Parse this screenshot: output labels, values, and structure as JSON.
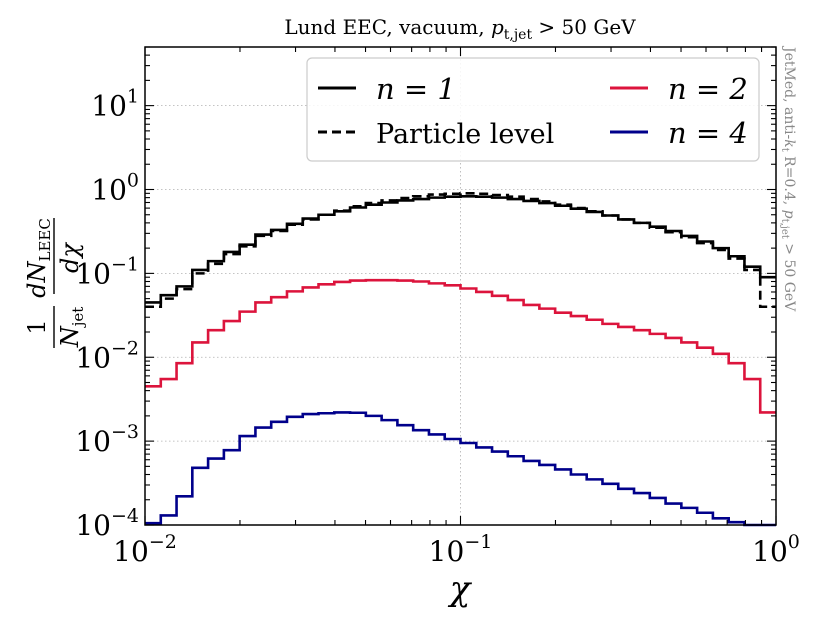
{
  "chart_data": {
    "type": "line",
    "title": "Lund EEC, vacuum, p_t,jet > 50 GeV",
    "title_parts": {
      "pre": "Lund EEC, vacuum, ",
      "p": "p",
      "sub": "t,jet",
      "post": " > 50 GeV"
    },
    "xlabel": "χ",
    "ylabel": "1/N_jet dN_LEEC/dχ",
    "ylabel_parts": {
      "one": "1",
      "N": "N",
      "jet": "jet",
      "dN": "dN",
      "LEEC": "LEEC",
      "dchi": "dχ"
    },
    "xscale": "log",
    "yscale": "log",
    "xlim": [
      0.01,
      1.0
    ],
    "ylim": [
      0.0001,
      50
    ],
    "grid": true,
    "x_ticks": [
      {
        "value": 0.01,
        "base": "10",
        "exp": "−2"
      },
      {
        "value": 0.1,
        "base": "10",
        "exp": "−1"
      },
      {
        "value": 1.0,
        "base": "10",
        "exp": "0"
      }
    ],
    "y_ticks": [
      {
        "value": 0.0001,
        "base": "10",
        "exp": "−4"
      },
      {
        "value": 0.001,
        "base": "10",
        "exp": "−3"
      },
      {
        "value": 0.01,
        "base": "10",
        "exp": "−2"
      },
      {
        "value": 0.1,
        "base": "10",
        "exp": "−1"
      },
      {
        "value": 1,
        "base": "10",
        "exp": "0"
      },
      {
        "value": 10,
        "base": "10",
        "exp": "1"
      }
    ],
    "side_annotation": {
      "pre": "JetMed, anti-",
      "k": "k",
      "ksub": "t",
      "mid": " R=0.4, ",
      "p": "p",
      "psub": "t,jet",
      "post": " > 50 GeV"
    },
    "legend_position": "top-right",
    "bins": {
      "n_bins": 40,
      "xmin": 0.01,
      "xmax": 1.0,
      "spacing": "log"
    },
    "series": [
      {
        "name": "n = 1",
        "math": "n = 1",
        "color": "#000000",
        "dash": "solid",
        "values": [
          0.045,
          0.055,
          0.07,
          0.11,
          0.14,
          0.18,
          0.22,
          0.29,
          0.33,
          0.39,
          0.45,
          0.5,
          0.55,
          0.61,
          0.66,
          0.7,
          0.74,
          0.77,
          0.8,
          0.82,
          0.83,
          0.82,
          0.8,
          0.77,
          0.73,
          0.69,
          0.64,
          0.59,
          0.54,
          0.49,
          0.44,
          0.4,
          0.36,
          0.32,
          0.28,
          0.24,
          0.2,
          0.16,
          0.12,
          0.09
        ]
      },
      {
        "name": "Particle level",
        "math": "",
        "color": "#000000",
        "dash": "dashed",
        "values": [
          0.04,
          0.05,
          0.065,
          0.1,
          0.13,
          0.17,
          0.21,
          0.28,
          0.32,
          0.38,
          0.44,
          0.5,
          0.56,
          0.63,
          0.69,
          0.74,
          0.79,
          0.83,
          0.87,
          0.89,
          0.9,
          0.89,
          0.86,
          0.82,
          0.77,
          0.72,
          0.66,
          0.6,
          0.55,
          0.49,
          0.44,
          0.4,
          0.35,
          0.31,
          0.27,
          0.23,
          0.19,
          0.15,
          0.11,
          0.04
        ]
      },
      {
        "name": "n = 2",
        "math": "n = 2",
        "color": "#dc143c",
        "dash": "solid",
        "values": [
          0.0045,
          0.0055,
          0.0085,
          0.015,
          0.021,
          0.027,
          0.035,
          0.045,
          0.052,
          0.061,
          0.068,
          0.074,
          0.079,
          0.082,
          0.083,
          0.083,
          0.082,
          0.08,
          0.076,
          0.072,
          0.066,
          0.06,
          0.054,
          0.048,
          0.042,
          0.038,
          0.034,
          0.031,
          0.028,
          0.025,
          0.023,
          0.021,
          0.019,
          0.017,
          0.015,
          0.013,
          0.011,
          0.0085,
          0.0055,
          0.0022
        ]
      },
      {
        "name": "n = 4",
        "math": "n = 4",
        "color": "#00008b",
        "dash": "solid",
        "values": [
          0.000105,
          0.00013,
          0.00022,
          0.00048,
          0.00062,
          0.00078,
          0.00115,
          0.00145,
          0.0017,
          0.00195,
          0.0021,
          0.00215,
          0.0022,
          0.00218,
          0.002,
          0.00178,
          0.00155,
          0.00135,
          0.0012,
          0.00106,
          0.00095,
          0.00084,
          0.00075,
          0.00066,
          0.00058,
          0.00052,
          0.00046,
          0.0004,
          0.00035,
          0.00031,
          0.00027,
          0.00024,
          0.00021,
          0.00018,
          0.00016,
          0.00014,
          0.00012,
          0.000108,
          9.5e-05,
          9e-05
        ]
      }
    ]
  }
}
